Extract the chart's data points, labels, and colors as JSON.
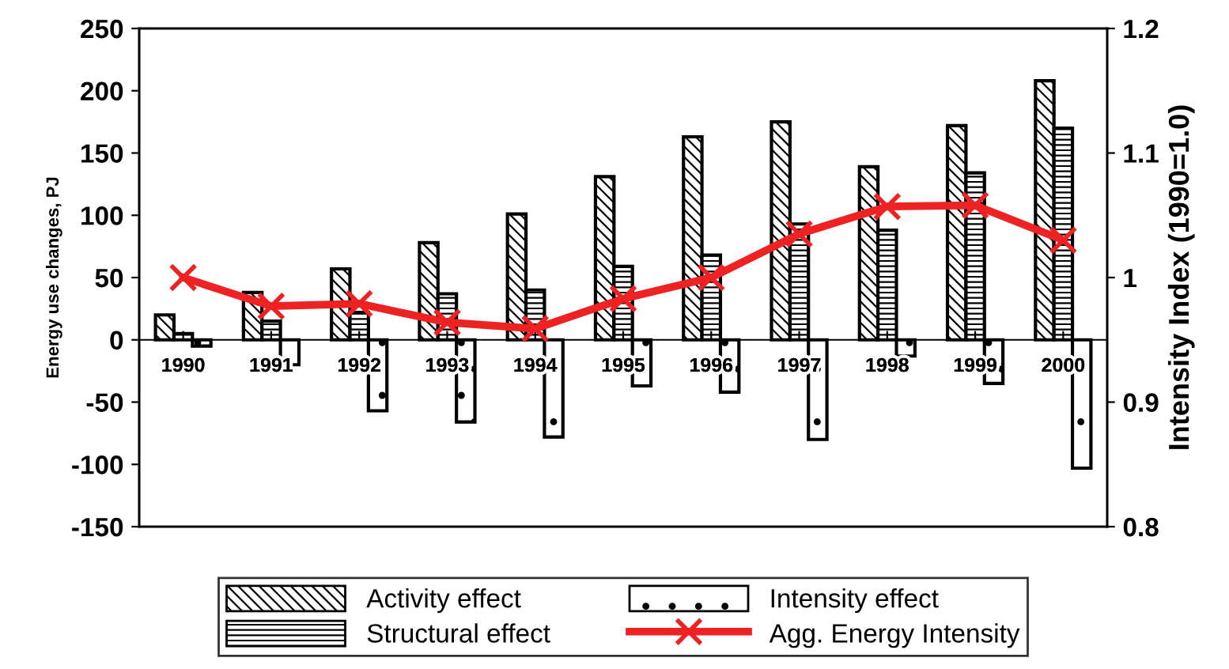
{
  "chart_data": {
    "type": "bar",
    "ylabel": "Energy use changes, PJ",
    "y2label": "Intensity Index (1990=1.0)",
    "categories": [
      "1990",
      "1991",
      "1992",
      "1993",
      "1994",
      "1995",
      "1996",
      "1997",
      "1998",
      "1999",
      "2000"
    ],
    "series": [
      {
        "name": "Activity effect",
        "color": "#000000",
        "values": [
          20,
          38,
          57,
          78,
          101,
          131,
          163,
          175,
          139,
          172,
          208
        ]
      },
      {
        "name": "Structural effect",
        "color": "#000000",
        "values": [
          5,
          15,
          22,
          37,
          40,
          59,
          68,
          93,
          88,
          134,
          170
        ]
      },
      {
        "name": "Intensity effect",
        "color": "#000000",
        "values": [
          -5,
          -20,
          -57,
          -66,
          -78,
          -37,
          -42,
          -80,
          -13,
          -35,
          -103
        ]
      },
      {
        "name": "Agg. Energy Intensity",
        "type": "line",
        "axis": "y2",
        "color": "#ee2222",
        "marker": "cross",
        "values": [
          1.0,
          0.977,
          0.979,
          0.964,
          0.959,
          0.983,
          1.0,
          1.035,
          1.057,
          1.058,
          1.03
        ]
      }
    ],
    "ylim": [
      -150,
      250
    ],
    "yticks": [
      -150,
      -100,
      -50,
      0,
      50,
      100,
      150,
      200,
      250
    ],
    "y2lim": [
      0.8,
      1.2
    ],
    "y2ticks": [
      0.8,
      0.9,
      1,
      1.1,
      1.2
    ],
    "grid": false,
    "legend": "bottom"
  }
}
